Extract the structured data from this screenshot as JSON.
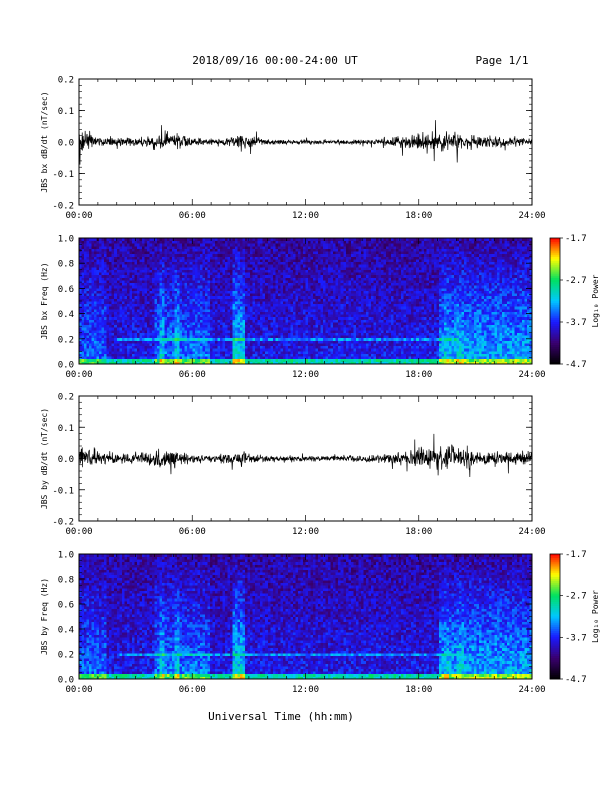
{
  "header": {
    "title": "2018/09/16  00:00-24:00 UT",
    "page": "Page 1/1"
  },
  "footer": {
    "xlabel": "Universal Time (hh:mm)"
  },
  "colors": {
    "background": "#ffffff",
    "trace": "#000000",
    "colormap": [
      "#000000",
      "#3a0070",
      "#1a1aff",
      "#00c8ff",
      "#00e060",
      "#ffff00",
      "#ff0000"
    ]
  },
  "chart_data": [
    {
      "type": "line",
      "ylabel": "JBS bx dB/dt (nT/sec)",
      "xlim": [
        0,
        24
      ],
      "ylim": [
        -0.2,
        0.2
      ],
      "yticks": [
        "0.2",
        "0.1",
        "0.0",
        "-0.1",
        "-0.2"
      ],
      "yticks_values": [
        0.2,
        0.1,
        0.0,
        -0.1,
        -0.2
      ],
      "xticks": [
        "00:00",
        "06:00",
        "12:00",
        "18:00",
        "24:00"
      ],
      "activity_envelope": {
        "x": [
          0,
          0.5,
          1,
          2,
          3,
          4,
          4.5,
          5,
          5.5,
          6,
          7,
          8,
          8.5,
          9,
          10,
          11,
          12,
          13,
          14,
          15,
          16,
          17,
          17.5,
          18,
          19,
          19.5,
          20,
          21,
          22,
          23,
          24
        ],
        "amplitude": [
          0.045,
          0.03,
          0.02,
          0.018,
          0.018,
          0.025,
          0.035,
          0.03,
          0.025,
          0.015,
          0.012,
          0.018,
          0.03,
          0.02,
          0.01,
          0.008,
          0.008,
          0.007,
          0.008,
          0.01,
          0.012,
          0.018,
          0.025,
          0.03,
          0.035,
          0.04,
          0.032,
          0.022,
          0.02,
          0.018,
          0.015
        ]
      }
    },
    {
      "type": "heatmap",
      "ylabel": "JBS bx Freq (Hz)",
      "xlim": [
        0,
        24
      ],
      "ylim": [
        0,
        1
      ],
      "yticks": [
        "1.0",
        "0.8",
        "0.6",
        "0.4",
        "0.2",
        "0.0"
      ],
      "yticks_values": [
        1.0,
        0.8,
        0.6,
        0.4,
        0.2,
        0.0
      ],
      "xticks": [
        "00:00",
        "06:00",
        "12:00",
        "18:00",
        "24:00"
      ],
      "colorbar": {
        "label": "Log₁₀ Power",
        "range": [
          -4.7,
          -1.7
        ],
        "ticks": [
          "-1.7",
          "-2.7",
          "-3.7",
          "-4.7"
        ],
        "ticks_values": [
          -1.7,
          -2.7,
          -3.7,
          -4.7
        ]
      }
    },
    {
      "type": "line",
      "ylabel": "JBS by dB/dt (nT/sec)",
      "xlim": [
        0,
        24
      ],
      "ylim": [
        -0.2,
        0.2
      ],
      "yticks": [
        "0.2",
        "0.1",
        "0.0",
        "-0.1",
        "-0.2"
      ],
      "yticks_values": [
        0.2,
        0.1,
        0.0,
        -0.1,
        -0.2
      ],
      "xticks": [
        "00:00",
        "06:00",
        "12:00",
        "18:00",
        "24:00"
      ],
      "activity_envelope": {
        "x": [
          0,
          0.5,
          1,
          2,
          3,
          4,
          4.5,
          5,
          5.5,
          6,
          7,
          8,
          8.5,
          9,
          10,
          11,
          12,
          13,
          14,
          15,
          16,
          17,
          17.5,
          18,
          19,
          19.5,
          20,
          21,
          22,
          23,
          24
        ],
        "amplitude": [
          0.06,
          0.05,
          0.03,
          0.02,
          0.02,
          0.028,
          0.035,
          0.03,
          0.025,
          0.015,
          0.012,
          0.02,
          0.032,
          0.022,
          0.012,
          0.01,
          0.01,
          0.009,
          0.01,
          0.012,
          0.015,
          0.022,
          0.03,
          0.04,
          0.048,
          0.055,
          0.045,
          0.035,
          0.03,
          0.028,
          0.025
        ]
      }
    },
    {
      "type": "heatmap",
      "ylabel": "JBS by Freq (Hz)",
      "xlim": [
        0,
        24
      ],
      "ylim": [
        0,
        1
      ],
      "yticks": [
        "1.0",
        "0.8",
        "0.6",
        "0.4",
        "0.2",
        "0.0"
      ],
      "yticks_values": [
        1.0,
        0.8,
        0.6,
        0.4,
        0.2,
        0.0
      ],
      "xticks": [
        "00:00",
        "06:00",
        "12:00",
        "18:00",
        "24:00"
      ],
      "colorbar": {
        "label": "Log₁₀ Power",
        "range": [
          -4.7,
          -1.7
        ],
        "ticks": [
          "-1.7",
          "-2.7",
          "-3.7",
          "-4.7"
        ],
        "ticks_values": [
          -1.7,
          -2.7,
          -3.7,
          -4.7
        ]
      }
    }
  ]
}
